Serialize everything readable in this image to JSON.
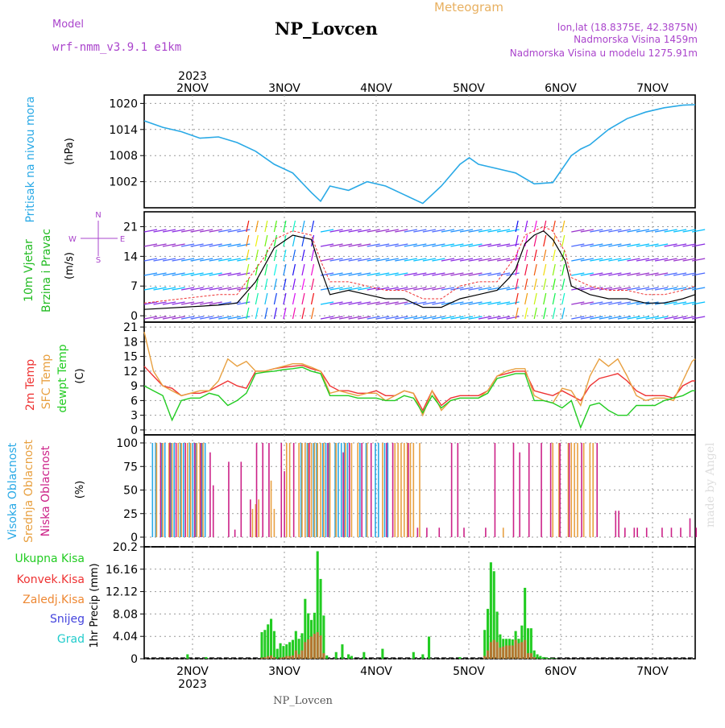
{
  "header": {
    "model_label": "Model",
    "model_name": "wrf-nmm_v3.9.1 e1km",
    "station": "NP_Lovcen",
    "product": "Meteogram",
    "lonlat": "lon,lat (18.8375E, 42.3875N)",
    "elevation": "Nadmorska Visina 1459m",
    "model_elevation": "Nadmorska Visina u modelu 1275.91m",
    "year": "2023",
    "footer_station": "NP_Lovcen",
    "watermark": "made by Angel"
  },
  "colors": {
    "pressure": "#29a9e6",
    "wind_label": "#22bb22",
    "temp2m": "#ee3333",
    "sfc": "#e8a040",
    "dew": "#22cc22",
    "high_cloud": "#29a9e6",
    "mid_cloud": "#e8a040",
    "low_cloud": "#cc2288",
    "total_precip": "#22cc22",
    "conv_precip": "#ee3333",
    "frz_precip": "#ee8833",
    "snow": "#4444dd",
    "graupel": "#22cccc",
    "purple_text": "#aa44cc",
    "orange_text": "#e8b060"
  },
  "chart_data": [
    {
      "type": "line",
      "id": "pressure",
      "ylabel": "Pritisak na nivou mora",
      "unit": "(hPa)",
      "yticks": [
        1002,
        1008,
        1014,
        1020
      ],
      "ylim": [
        996,
        1021
      ],
      "x_tick_labels": [
        "2NOV",
        "3NOV",
        "4NOV",
        "5NOV",
        "6NOV",
        "7NOV"
      ],
      "x": [
        0,
        6,
        12,
        18,
        24,
        30,
        36,
        42,
        48,
        54,
        57,
        60,
        66,
        72,
        78,
        84,
        90,
        96,
        102,
        105,
        108,
        114,
        120,
        126,
        132,
        138,
        141,
        144,
        150,
        156,
        162,
        168,
        174,
        178
      ],
      "values": [
        1016,
        1014.5,
        1013.5,
        1012,
        1012.3,
        1011,
        1009,
        1006,
        1004,
        999.5,
        997.5,
        1001,
        1000,
        1002,
        1001,
        999,
        997,
        1001,
        1006,
        1007.5,
        1006,
        1005,
        1004,
        1001.5,
        1001.8,
        1008,
        1009.5,
        1010.5,
        1014,
        1016.5,
        1018,
        1019,
        1019.6,
        1019.7
      ]
    },
    {
      "type": "line",
      "id": "wind",
      "ylabel": "10m Vjetar Brzina i Pravac",
      "unit": "(m/s)",
      "compass": [
        "N",
        "E",
        "S",
        "W"
      ],
      "yticks": [
        0,
        7,
        14,
        21
      ],
      "ylim": [
        -1.5,
        24.5
      ],
      "x": [
        0,
        12,
        24,
        30,
        36,
        39,
        42,
        48,
        54,
        57,
        60,
        66,
        72,
        78,
        84,
        90,
        96,
        102,
        108,
        114,
        118,
        120,
        123,
        126,
        129,
        132,
        136,
        138,
        144,
        150,
        156,
        162,
        168,
        174,
        178
      ],
      "speed": [
        1.5,
        2,
        2.5,
        3,
        8,
        12,
        16,
        19,
        18,
        11,
        5,
        6,
        5,
        4,
        4,
        2,
        2,
        4,
        5,
        6,
        9,
        11,
        17,
        19,
        20,
        18,
        13,
        7,
        5,
        4,
        4,
        3,
        3,
        4,
        5
      ],
      "gust": [
        3,
        4,
        5,
        5,
        11,
        14,
        18,
        20,
        19,
        13,
        8,
        8,
        7,
        6,
        6,
        4,
        4,
        7,
        8,
        8,
        12,
        14,
        19,
        20,
        21,
        20,
        15,
        9,
        7,
        6,
        6,
        5,
        5,
        6,
        7
      ]
    },
    {
      "type": "line",
      "id": "temperature",
      "unit": "(C)",
      "yticks": [
        0,
        3,
        6,
        9,
        12,
        15,
        18,
        21
      ],
      "ylim": [
        -1,
        22
      ],
      "x": [
        0,
        3,
        6,
        9,
        12,
        15,
        18,
        21,
        24,
        27,
        30,
        33,
        36,
        39,
        42,
        45,
        48,
        51,
        54,
        57,
        60,
        63,
        66,
        69,
        72,
        75,
        78,
        81,
        84,
        87,
        90,
        93,
        96,
        99,
        102,
        105,
        108,
        111,
        114,
        117,
        120,
        123,
        126,
        129,
        132,
        135,
        138,
        141,
        144,
        147,
        150,
        153,
        156,
        159,
        162,
        165,
        168,
        171,
        174,
        177,
        178
      ],
      "series": [
        {
          "name": "2m Temp",
          "values": [
            13,
            11,
            9,
            8.5,
            7,
            7.5,
            7.5,
            8,
            9,
            10,
            9,
            8.5,
            12,
            12,
            12.5,
            12.8,
            13,
            13.2,
            12.5,
            12,
            9,
            8,
            8,
            7.5,
            7.5,
            8,
            7,
            7,
            8,
            7.5,
            4,
            8,
            5,
            6.5,
            7,
            7,
            7,
            8,
            11,
            11.5,
            12,
            12,
            8,
            7.5,
            7,
            8,
            7,
            6,
            9,
            10.5,
            11,
            11.5,
            10,
            8,
            7,
            7,
            7,
            6.5,
            9,
            10,
            10
          ]
        },
        {
          "name": "SFC Temp",
          "values": [
            20,
            12,
            9,
            8,
            7,
            7.5,
            8,
            8,
            10,
            14.5,
            13,
            14,
            12,
            12,
            12.5,
            13,
            13.5,
            13.5,
            12.8,
            12,
            7.5,
            8,
            7.5,
            7,
            7.5,
            7.5,
            6,
            7,
            8,
            7.5,
            3,
            8,
            4,
            6,
            6.5,
            6.5,
            6.5,
            8,
            11,
            12,
            12.5,
            12.5,
            7,
            6,
            5.5,
            8.5,
            8,
            5,
            11,
            14.5,
            13,
            14.5,
            11,
            7,
            6,
            6.5,
            6.5,
            6,
            10,
            14,
            14.5
          ]
        },
        {
          "name": "dewpt Temp",
          "values": [
            9,
            8,
            7,
            2,
            6,
            6.5,
            6.5,
            7.5,
            7,
            5,
            6,
            7.5,
            11.5,
            11.8,
            12,
            12.3,
            12.5,
            12.8,
            12,
            11.5,
            7,
            7,
            7,
            6.5,
            6.5,
            6.5,
            6,
            6,
            7,
            6.5,
            3.5,
            7,
            4.5,
            6,
            6.5,
            6.5,
            6.5,
            7.5,
            10.5,
            11,
            11.5,
            11.5,
            6,
            6,
            5.5,
            4.5,
            6,
            0.5,
            5,
            5.5,
            4,
            3,
            3,
            5,
            5,
            5,
            6,
            6.5,
            7,
            8,
            8
          ]
        }
      ]
    },
    {
      "type": "bar",
      "id": "clouds",
      "unit": "(%)",
      "yticks": [
        0,
        25,
        50,
        75,
        100
      ],
      "ylim": [
        0,
        100
      ],
      "series": [
        {
          "name": "Visoka Oblacnost",
          "x": [
            3,
            4,
            6,
            7,
            9,
            10,
            12,
            13,
            15,
            16,
            17,
            19,
            20,
            51,
            53,
            55,
            56,
            58,
            59,
            60,
            62,
            63,
            64,
            65,
            66,
            70,
            72,
            75,
            76,
            78,
            79
          ],
          "values": [
            100,
            100,
            100,
            100,
            100,
            100,
            100,
            100,
            100,
            100,
            100,
            100,
            100,
            100,
            100,
            100,
            100,
            100,
            100,
            100,
            100,
            100,
            100,
            100,
            100,
            100,
            100,
            100,
            100,
            100,
            100
          ]
        },
        {
          "name": "Srednja Oblacnost",
          "x": [
            4,
            6,
            8,
            9,
            11,
            12,
            14,
            15,
            17,
            18,
            19,
            35,
            36,
            37,
            41,
            42,
            46,
            47,
            50,
            51,
            52,
            53,
            54,
            55,
            56,
            57,
            58,
            60,
            62,
            65,
            67,
            69,
            72,
            77,
            81,
            82,
            83,
            84,
            85,
            86,
            87,
            89,
            116,
            132,
            134,
            137,
            138,
            139,
            140,
            142,
            144,
            145
          ],
          "values": [
            100,
            100,
            100,
            100,
            100,
            100,
            100,
            100,
            100,
            100,
            100,
            30,
            35,
            40,
            60,
            30,
            100,
            100,
            100,
            100,
            100,
            100,
            100,
            100,
            100,
            100,
            100,
            100,
            100,
            100,
            100,
            100,
            100,
            100,
            100,
            100,
            100,
            100,
            100,
            100,
            100,
            100,
            10,
            100,
            100,
            100,
            100,
            100,
            100,
            100,
            100,
            100
          ]
        },
        {
          "name": "Niska Oblacnost",
          "x": [
            5,
            8,
            10,
            13,
            16,
            18,
            21,
            22,
            27,
            29,
            31,
            34,
            36,
            38,
            40,
            44,
            45,
            48,
            53,
            59,
            64,
            66,
            70,
            73,
            78,
            80,
            85,
            88,
            91,
            95,
            99,
            101,
            103,
            110,
            113,
            119,
            121,
            124,
            128,
            131,
            134,
            137,
            141,
            146,
            152,
            153,
            155,
            158,
            159,
            162,
            167,
            170,
            173,
            176,
            178
          ],
          "values": [
            100,
            100,
            100,
            100,
            100,
            100,
            90,
            55,
            80,
            8,
            80,
            40,
            100,
            100,
            100,
            100,
            70,
            100,
            100,
            100,
            90,
            100,
            100,
            100,
            100,
            100,
            100,
            10,
            10,
            10,
            100,
            100,
            10,
            10,
            100,
            100,
            90,
            100,
            100,
            100,
            100,
            100,
            100,
            100,
            28,
            28,
            10,
            10,
            10,
            10,
            10,
            10,
            10,
            20,
            10
          ]
        }
      ]
    },
    {
      "type": "bar",
      "id": "precip",
      "ylabel": "1hr Precip (mm)",
      "yticks": [
        0,
        4.04,
        8.08,
        12.12,
        16.16,
        20.2
      ],
      "ylim": [
        0,
        20.2
      ],
      "legend": [
        "Ukupna Kisa",
        "Konvek.Kisa",
        "Zaledj.Kisa",
        "Snijeg",
        "Grad"
      ],
      "x": [
        14,
        20,
        38,
        39,
        40,
        41,
        42,
        43,
        44,
        45,
        46,
        47,
        48,
        49,
        50,
        51,
        52,
        53,
        54,
        55,
        56,
        57,
        58,
        59,
        62,
        64,
        66,
        67,
        71,
        77,
        87,
        90,
        92,
        102,
        110,
        111,
        112,
        113,
        114,
        115,
        116,
        117,
        118,
        119,
        120,
        121,
        122,
        123,
        124,
        125,
        126,
        127,
        128,
        129,
        130,
        131,
        132,
        133
      ],
      "values": [
        0.8,
        0.3,
        4.8,
        5.2,
        6.2,
        7.2,
        5,
        1.8,
        2.8,
        2.3,
        2.6,
        3,
        3.4,
        5,
        3.6,
        4.6,
        10.8,
        8.2,
        7,
        8.3,
        19.4,
        14.4,
        7.8,
        0.6,
        1.2,
        2.6,
        0.8,
        0.5,
        1.2,
        1.8,
        1.2,
        0.8,
        4,
        0.3,
        5.2,
        9,
        17.4,
        15.8,
        8.5,
        4.4,
        3.6,
        3.6,
        3.6,
        3.5,
        5,
        3.6,
        6,
        12.8,
        5.5,
        5.5,
        1.5,
        0.8,
        0.5,
        0.3,
        0.2,
        0.1,
        0.1,
        0.05
      ],
      "convective": [
        0,
        0,
        0.2,
        0.3,
        0.5,
        0.6,
        0.3,
        0,
        0.2,
        0.3,
        0.5,
        0.5,
        0.6,
        1.5,
        0.8,
        1.5,
        3,
        3.5,
        4,
        4.5,
        4.8,
        4.2,
        1,
        0,
        0,
        0,
        0,
        0,
        0,
        0,
        0,
        0,
        0,
        0,
        0.5,
        1.5,
        3,
        3.4,
        3,
        2,
        2.2,
        2.4,
        2.4,
        2.4,
        3.4,
        2.8,
        3,
        3.4,
        1,
        1,
        0.3,
        0,
        0,
        0,
        0,
        0,
        0,
        0
      ]
    }
  ]
}
